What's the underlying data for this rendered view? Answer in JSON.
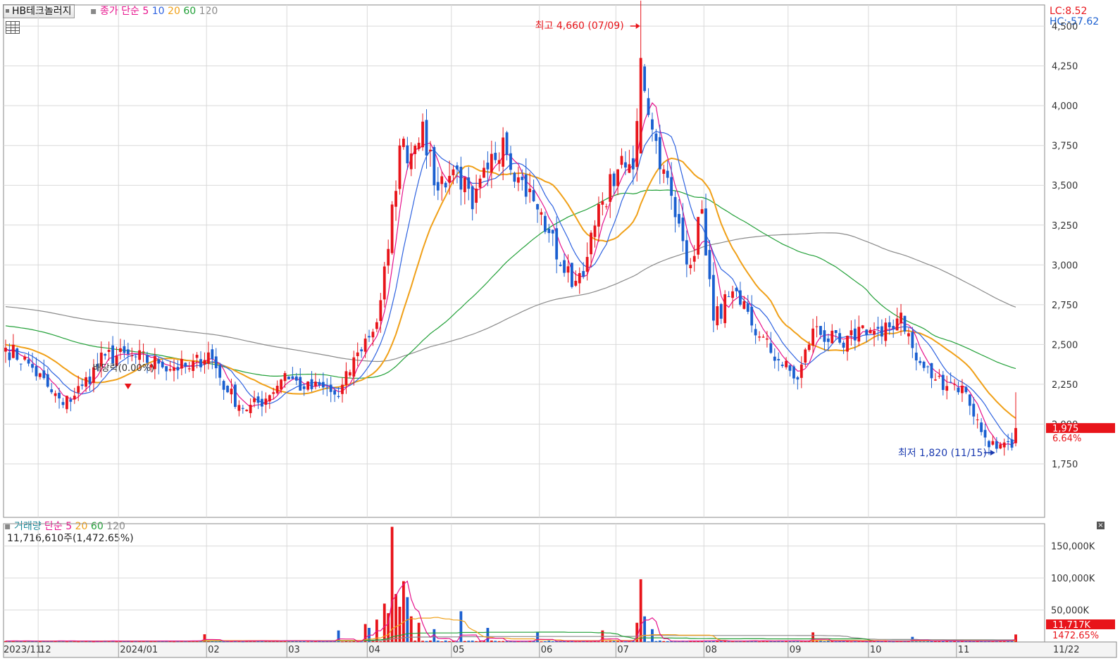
{
  "header": {
    "stock_name": "HB테크놀러지",
    "ma_type": "종가 단순",
    "ma_periods": [
      "5",
      "10",
      "20",
      "60",
      "120"
    ],
    "lc_label": "LC:8.52",
    "hc_label": "HC:-57.62"
  },
  "volume_header": {
    "title": "거래량",
    "ma_type": "단순",
    "ma_periods": [
      "5",
      "20",
      "60",
      "120"
    ],
    "current": "11,716,610주(1,472.65%)"
  },
  "annotations": {
    "high": "최고 4,660 (07/09)",
    "low": "최저 1,820 (11/15)",
    "dividend": "배당락(0.00%)"
  },
  "price_tag": {
    "price": "1,975",
    "change": "6.64%"
  },
  "volume_tag": {
    "value": "11,717K",
    "pct": "1472.65%"
  },
  "colors": {
    "up": "#e8141a",
    "down": "#1a5fd0",
    "ma5": "#e6128c",
    "ma10": "#2e62e0",
    "ma20": "#f0a018",
    "ma60": "#22a038",
    "ma120": "#8a8a8a",
    "grid": "#d9d9d9",
    "frame": "#8a8a8a",
    "tag_bg": "#e8141a"
  },
  "chart_data": [
    {
      "type": "candlestick",
      "title": "HB테크놀러지",
      "x_axis_labels": [
        "2023/11",
        "12",
        "2024/01",
        "02",
        "03",
        "04",
        "05",
        "06",
        "07",
        "08",
        "09",
        "10",
        "11",
        "11/22"
      ],
      "y_ticks": [
        1750,
        2000,
        2250,
        2500,
        2750,
        3000,
        3250,
        3500,
        3750,
        4000,
        4250,
        4500
      ],
      "y_tick_labels": [
        "1,750",
        "2,000",
        "2,250",
        "2,500",
        "2,750",
        "3,000",
        "3,250",
        "3,500",
        "3,750",
        "4,000",
        "4,250",
        "4,500"
      ],
      "ylim": [
        1720,
        4720
      ],
      "close_anchors": [
        {
          "date": "2023-11-20",
          "close": 2480
        },
        {
          "date": "2023-11-28",
          "close": 2380
        },
        {
          "date": "2023-12-06",
          "close": 2200
        },
        {
          "date": "2023-12-11",
          "close": 2120
        },
        {
          "date": "2023-12-18",
          "close": 2240
        },
        {
          "date": "2023-12-26",
          "close": 2430
        },
        {
          "date": "2024-01-05",
          "close": 2420
        },
        {
          "date": "2024-01-15",
          "close": 2380
        },
        {
          "date": "2024-01-25",
          "close": 2350
        },
        {
          "date": "2024-02-01",
          "close": 2450
        },
        {
          "date": "2024-02-08",
          "close": 2200
        },
        {
          "date": "2024-02-15",
          "close": 2090
        },
        {
          "date": "2024-02-22",
          "close": 2160
        },
        {
          "date": "2024-02-29",
          "close": 2320
        },
        {
          "date": "2024-03-07",
          "close": 2220
        },
        {
          "date": "2024-03-14",
          "close": 2230
        },
        {
          "date": "2024-03-20",
          "close": 2170
        },
        {
          "date": "2024-03-27",
          "close": 2450
        },
        {
          "date": "2024-04-03",
          "close": 2640
        },
        {
          "date": "2024-04-08",
          "close": 3100
        },
        {
          "date": "2024-04-11",
          "close": 3750
        },
        {
          "date": "2024-04-16",
          "close": 3700
        },
        {
          "date": "2024-04-19",
          "close": 3900
        },
        {
          "date": "2024-04-24",
          "close": 3500
        },
        {
          "date": "2024-05-02",
          "close": 3600
        },
        {
          "date": "2024-05-08",
          "close": 3350
        },
        {
          "date": "2024-05-14",
          "close": 3600
        },
        {
          "date": "2024-05-20",
          "close": 3800
        },
        {
          "date": "2024-05-24",
          "close": 3550
        },
        {
          "date": "2024-05-30",
          "close": 3400
        },
        {
          "date": "2024-06-05",
          "close": 3200
        },
        {
          "date": "2024-06-11",
          "close": 2950
        },
        {
          "date": "2024-06-14",
          "close": 2900
        },
        {
          "date": "2024-06-19",
          "close": 3050
        },
        {
          "date": "2024-06-25",
          "close": 3400
        },
        {
          "date": "2024-07-01",
          "close": 3600
        },
        {
          "date": "2024-07-05",
          "close": 3600
        },
        {
          "date": "2024-07-09",
          "close": 4300
        },
        {
          "date": "2024-07-12",
          "close": 3850
        },
        {
          "date": "2024-07-17",
          "close": 3600
        },
        {
          "date": "2024-07-22",
          "close": 3300
        },
        {
          "date": "2024-07-26",
          "close": 3000
        },
        {
          "date": "2024-07-31",
          "close": 3350
        },
        {
          "date": "2024-08-05",
          "close": 2650
        },
        {
          "date": "2024-08-09",
          "close": 2800
        },
        {
          "date": "2024-08-14",
          "close": 2750
        },
        {
          "date": "2024-08-21",
          "close": 2550
        },
        {
          "date": "2024-08-28",
          "close": 2400
        },
        {
          "date": "2024-09-04",
          "close": 2280
        },
        {
          "date": "2024-09-10",
          "close": 2600
        },
        {
          "date": "2024-09-20",
          "close": 2480
        },
        {
          "date": "2024-09-27",
          "close": 2620
        },
        {
          "date": "2024-10-04",
          "close": 2550
        },
        {
          "date": "2024-10-11",
          "close": 2700
        },
        {
          "date": "2024-10-17",
          "close": 2400
        },
        {
          "date": "2024-10-24",
          "close": 2280
        },
        {
          "date": "2024-10-31",
          "close": 2250
        },
        {
          "date": "2024-11-05",
          "close": 2200
        },
        {
          "date": "2024-11-11",
          "close": 1950
        },
        {
          "date": "2024-11-15",
          "close": 1840
        },
        {
          "date": "2024-11-21",
          "close": 1852
        },
        {
          "date": "2024-11-22",
          "close": 1975
        }
      ],
      "high": {
        "date": "2024-07-09",
        "value": 4660
      },
      "low": {
        "date": "2024-11-15",
        "value": 1820
      },
      "last": {
        "date": "2024-11-22",
        "open": 1880,
        "high": 2200,
        "low": 1860,
        "close": 1975,
        "change_pct": 6.64
      },
      "moving_averages": [
        {
          "name": "5",
          "period": 5
        },
        {
          "name": "10",
          "period": 10
        },
        {
          "name": "20",
          "period": 20
        },
        {
          "name": "60",
          "period": 60
        },
        {
          "name": "120",
          "period": 120
        }
      ]
    },
    {
      "type": "bar",
      "title": "거래량",
      "y_ticks": [
        50000,
        100000,
        150000
      ],
      "y_tick_labels": [
        "50,000K",
        "100,000K",
        "150,000K"
      ],
      "ylim": [
        0,
        200000
      ],
      "unit": "K",
      "baseline_k": 1500,
      "volume_spikes_k": [
        {
          "date": "2024-01-31",
          "value": 12000
        },
        {
          "date": "2024-03-20",
          "value": 18000
        },
        {
          "date": "2024-03-29",
          "value": 28000
        },
        {
          "date": "2024-04-01",
          "value": 22000
        },
        {
          "date": "2024-04-03",
          "value": 35000
        },
        {
          "date": "2024-04-05",
          "value": 60000
        },
        {
          "date": "2024-04-08",
          "value": 45000
        },
        {
          "date": "2024-04-09",
          "value": 180000
        },
        {
          "date": "2024-04-10",
          "value": 75000
        },
        {
          "date": "2024-04-11",
          "value": 55000
        },
        {
          "date": "2024-04-12",
          "value": 95000
        },
        {
          "date": "2024-04-15",
          "value": 70000
        },
        {
          "date": "2024-04-16",
          "value": 40000
        },
        {
          "date": "2024-04-18",
          "value": 30000
        },
        {
          "date": "2024-04-24",
          "value": 20000
        },
        {
          "date": "2024-05-03",
          "value": 48000
        },
        {
          "date": "2024-05-14",
          "value": 22000
        },
        {
          "date": "2024-05-31",
          "value": 15000
        },
        {
          "date": "2024-06-25",
          "value": 18000
        },
        {
          "date": "2024-07-08",
          "value": 30000
        },
        {
          "date": "2024-07-09",
          "value": 98000
        },
        {
          "date": "2024-07-10",
          "value": 40000
        },
        {
          "date": "2024-07-12",
          "value": 20000
        },
        {
          "date": "2024-09-10",
          "value": 15000
        },
        {
          "date": "2024-10-16",
          "value": 8000
        },
        {
          "date": "2024-11-22",
          "value": 11717
        }
      ],
      "last_k": 11717,
      "last_pct": 1472.65
    }
  ]
}
